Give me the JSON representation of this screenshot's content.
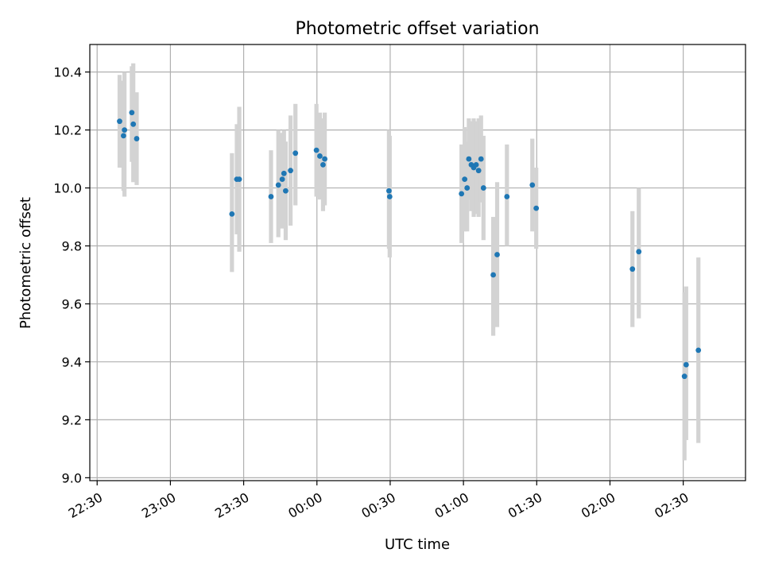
{
  "chart_data": {
    "type": "scatter",
    "title": "Photometric offset variation",
    "xlabel": "UTC time",
    "ylabel": "Photometric offset",
    "x_tick_labels": [
      "22:30",
      "23:00",
      "23:30",
      "00:00",
      "00:30",
      "01:00",
      "01:30",
      "02:00",
      "02:30"
    ],
    "x_tick_minutes": [
      0,
      30,
      60,
      90,
      120,
      150,
      180,
      210,
      240
    ],
    "xlim_minutes": [
      -3,
      265.5
    ],
    "y_tick_labels": [
      "9.0",
      "9.2",
      "9.4",
      "9.6",
      "9.8",
      "10.0",
      "10.2",
      "10.4"
    ],
    "y_ticks": [
      9.0,
      9.2,
      9.4,
      9.6,
      9.8,
      10.0,
      10.2,
      10.4
    ],
    "ylim": [
      8.99,
      10.495
    ],
    "grid": true,
    "marker_color": "#1f77b4",
    "errorbar_color": "#d3d3d3",
    "points": [
      {
        "t": 9.2,
        "y": 10.23,
        "lo": 10.07,
        "hi": 10.39
      },
      {
        "t": 10.8,
        "y": 10.18,
        "lo": 9.99,
        "hi": 10.37
      },
      {
        "t": 11.2,
        "y": 10.2,
        "lo": 9.97,
        "hi": 10.4
      },
      {
        "t": 14.2,
        "y": 10.26,
        "lo": 10.09,
        "hi": 10.42
      },
      {
        "t": 14.8,
        "y": 10.22,
        "lo": 10.02,
        "hi": 10.43
      },
      {
        "t": 16.2,
        "y": 10.17,
        "lo": 10.01,
        "hi": 10.33
      },
      {
        "t": 55.2,
        "y": 9.91,
        "lo": 9.71,
        "hi": 10.12
      },
      {
        "t": 57.2,
        "y": 10.03,
        "lo": 9.84,
        "hi": 10.22
      },
      {
        "t": 58.2,
        "y": 10.03,
        "lo": 9.78,
        "hi": 10.28
      },
      {
        "t": 71.2,
        "y": 9.97,
        "lo": 9.81,
        "hi": 10.13
      },
      {
        "t": 74.2,
        "y": 10.01,
        "lo": 9.83,
        "hi": 10.2
      },
      {
        "t": 75.8,
        "y": 10.03,
        "lo": 9.86,
        "hi": 10.19
      },
      {
        "t": 76.5,
        "y": 10.05,
        "lo": 9.9,
        "hi": 10.2
      },
      {
        "t": 77.2,
        "y": 9.99,
        "lo": 9.82,
        "hi": 10.16
      },
      {
        "t": 79.2,
        "y": 10.06,
        "lo": 9.87,
        "hi": 10.25
      },
      {
        "t": 81.2,
        "y": 10.12,
        "lo": 9.94,
        "hi": 10.29
      },
      {
        "t": 89.8,
        "y": 10.13,
        "lo": 9.97,
        "hi": 10.29
      },
      {
        "t": 91.2,
        "y": 10.11,
        "lo": 9.96,
        "hi": 10.26
      },
      {
        "t": 92.5,
        "y": 10.08,
        "lo": 9.92,
        "hi": 10.24
      },
      {
        "t": 93.2,
        "y": 10.1,
        "lo": 9.94,
        "hi": 10.26
      },
      {
        "t": 119.5,
        "y": 9.99,
        "lo": 9.79,
        "hi": 10.2
      },
      {
        "t": 119.8,
        "y": 9.97,
        "lo": 9.76,
        "hi": 10.18
      },
      {
        "t": 149.2,
        "y": 9.98,
        "lo": 9.81,
        "hi": 10.15
      },
      {
        "t": 150.5,
        "y": 10.03,
        "lo": 9.85,
        "hi": 10.21
      },
      {
        "t": 151.5,
        "y": 10.0,
        "lo": 9.85,
        "hi": 10.16
      },
      {
        "t": 152.2,
        "y": 10.1,
        "lo": 9.96,
        "hi": 10.24
      },
      {
        "t": 153.2,
        "y": 10.08,
        "lo": 9.92,
        "hi": 10.23
      },
      {
        "t": 154.2,
        "y": 10.07,
        "lo": 9.9,
        "hi": 10.24
      },
      {
        "t": 155.2,
        "y": 10.08,
        "lo": 9.91,
        "hi": 10.23
      },
      {
        "t": 156.2,
        "y": 10.06,
        "lo": 9.9,
        "hi": 10.24
      },
      {
        "t": 157.2,
        "y": 10.1,
        "lo": 9.95,
        "hi": 10.25
      },
      {
        "t": 158.2,
        "y": 10.0,
        "lo": 9.82,
        "hi": 10.18
      },
      {
        "t": 162.2,
        "y": 9.7,
        "lo": 9.49,
        "hi": 9.9
      },
      {
        "t": 163.8,
        "y": 9.77,
        "lo": 9.52,
        "hi": 10.02
      },
      {
        "t": 167.8,
        "y": 9.97,
        "lo": 9.8,
        "hi": 10.15
      },
      {
        "t": 178.2,
        "y": 10.01,
        "lo": 9.85,
        "hi": 10.17
      },
      {
        "t": 179.8,
        "y": 9.93,
        "lo": 9.79,
        "hi": 10.07
      },
      {
        "t": 219.2,
        "y": 9.72,
        "lo": 9.52,
        "hi": 9.92
      },
      {
        "t": 221.8,
        "y": 9.78,
        "lo": 9.55,
        "hi": 10.0
      },
      {
        "t": 240.5,
        "y": 9.35,
        "lo": 9.06,
        "hi": 9.64
      },
      {
        "t": 241.2,
        "y": 9.39,
        "lo": 9.13,
        "hi": 9.66
      },
      {
        "t": 246.2,
        "y": 9.44,
        "lo": 9.12,
        "hi": 9.76
      }
    ]
  }
}
